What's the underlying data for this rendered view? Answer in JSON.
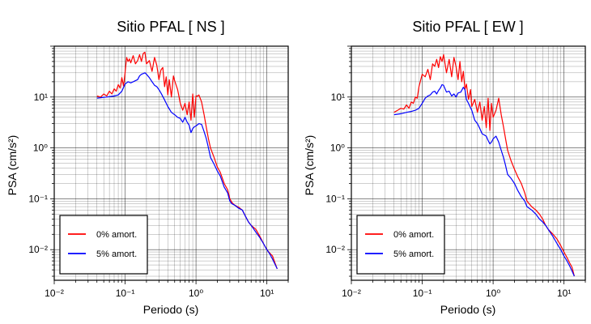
{
  "colors": {
    "series_0": "#ff0000",
    "series_5": "#0000ff",
    "axis": "#000000",
    "grid": "#000000"
  },
  "chart_data": [
    {
      "type": "line",
      "title": "Sitio PFAL [ NS ]",
      "xlabel": "Periodo (s)",
      "ylabel": "PSA (cm/s²)",
      "xscale": "log",
      "yscale": "log",
      "xlim": [
        0.01,
        20
      ],
      "ylim": [
        0.0025,
        100
      ],
      "grid": true,
      "legend_position": "bottom-left",
      "x_ticks": [
        {
          "value": 0.01,
          "label": "10⁻²"
        },
        {
          "value": 0.1,
          "label": "10⁻¹"
        },
        {
          "value": 1,
          "label": "10⁰"
        },
        {
          "value": 10,
          "label": "10¹"
        }
      ],
      "y_ticks": [
        {
          "value": 0.01,
          "label": "10⁻²"
        },
        {
          "value": 0.1,
          "label": "10⁻¹"
        },
        {
          "value": 1,
          "label": "10⁰"
        },
        {
          "value": 10,
          "label": "10¹"
        }
      ],
      "series": [
        {
          "name": "0% amort.",
          "color": "#ff0000",
          "x": [
            0.04,
            0.045,
            0.05,
            0.055,
            0.06,
            0.065,
            0.07,
            0.075,
            0.08,
            0.085,
            0.09,
            0.095,
            0.1,
            0.105,
            0.11,
            0.115,
            0.12,
            0.13,
            0.14,
            0.15,
            0.16,
            0.17,
            0.18,
            0.19,
            0.2,
            0.22,
            0.24,
            0.26,
            0.28,
            0.3,
            0.32,
            0.34,
            0.36,
            0.38,
            0.4,
            0.42,
            0.45,
            0.48,
            0.5,
            0.55,
            0.6,
            0.65,
            0.7,
            0.75,
            0.8,
            0.85,
            0.9,
            0.95,
            1.0,
            1.05,
            1.1,
            1.2,
            1.3,
            1.4,
            1.5,
            1.6,
            1.8,
            2.0,
            2.2,
            2.5,
            2.8,
            3.0,
            3.2,
            3.5,
            4.0,
            4.5,
            5.0,
            5.5,
            6.0,
            7.0,
            8.0,
            9.0,
            10.0,
            11.0,
            12.0,
            13.0,
            14.0
          ],
          "y": [
            10.5,
            10.0,
            11.5,
            10.5,
            13.0,
            11.5,
            14.5,
            13.0,
            17.5,
            15.0,
            24.0,
            16.5,
            30.0,
            60.0,
            50.0,
            56.0,
            47.0,
            65.0,
            45.0,
            52.0,
            68.0,
            50.0,
            72.0,
            76.0,
            45.0,
            52.0,
            32.0,
            60.0,
            42.0,
            22.0,
            34.0,
            38.0,
            16.0,
            25.0,
            11.0,
            22.0,
            10.0,
            26.0,
            21.0,
            14.0,
            7.5,
            5.5,
            7.5,
            4.5,
            8.0,
            3.5,
            11.5,
            4.0,
            10.5,
            10.5,
            11.0,
            8.0,
            4.5,
            2.5,
            1.5,
            1.0,
            0.65,
            0.42,
            0.33,
            0.2,
            0.15,
            0.1,
            0.085,
            0.075,
            0.068,
            0.06,
            0.045,
            0.035,
            0.03,
            0.025,
            0.018,
            0.013,
            0.01,
            0.0085,
            0.0075,
            0.0055,
            0.0042
          ]
        },
        {
          "name": "5% amort.",
          "color": "#0000ff",
          "x": [
            0.04,
            0.045,
            0.05,
            0.055,
            0.06,
            0.07,
            0.08,
            0.09,
            0.1,
            0.11,
            0.12,
            0.13,
            0.14,
            0.15,
            0.16,
            0.17,
            0.18,
            0.19,
            0.2,
            0.22,
            0.24,
            0.26,
            0.28,
            0.3,
            0.32,
            0.35,
            0.4,
            0.45,
            0.5,
            0.55,
            0.6,
            0.65,
            0.7,
            0.75,
            0.8,
            0.85,
            0.9,
            0.95,
            1.0,
            1.1,
            1.2,
            1.3,
            1.4,
            1.5,
            1.6,
            1.8,
            2.0,
            2.2,
            2.5,
            2.8,
            3.0,
            3.2,
            3.5,
            4.0,
            4.5,
            5.0,
            5.5,
            6.0,
            7.0,
            8.0,
            9.0,
            10.0,
            11.0,
            12.0,
            13.0,
            14.0
          ],
          "y": [
            9.5,
            9.7,
            9.9,
            10.0,
            10.2,
            10.5,
            11.0,
            13.0,
            18.0,
            20.0,
            19.0,
            20.0,
            21.0,
            22.0,
            26.0,
            28.0,
            29.0,
            30.0,
            28.0,
            24.0,
            20.0,
            17.0,
            16.0,
            14.0,
            12.0,
            9.5,
            6.5,
            5.0,
            4.5,
            4.0,
            3.8,
            3.2,
            4.0,
            3.2,
            2.8,
            2.0,
            2.4,
            2.6,
            2.7,
            3.0,
            2.9,
            2.1,
            1.5,
            1.0,
            0.65,
            0.48,
            0.35,
            0.28,
            0.17,
            0.13,
            0.09,
            0.08,
            0.075,
            0.065,
            0.06,
            0.045,
            0.035,
            0.03,
            0.022,
            0.017,
            0.013,
            0.01,
            0.0082,
            0.0065,
            0.0052,
            0.0042
          ]
        }
      ]
    },
    {
      "type": "line",
      "title": "Sitio PFAL [ EW ]",
      "xlabel": "Periodo (s)",
      "ylabel": "PSA (cm/s²)",
      "xscale": "log",
      "yscale": "log",
      "xlim": [
        0.01,
        20
      ],
      "ylim": [
        0.0025,
        100
      ],
      "grid": true,
      "legend_position": "bottom-left",
      "x_ticks": [
        {
          "value": 0.01,
          "label": "10⁻²"
        },
        {
          "value": 0.1,
          "label": "10⁻¹"
        },
        {
          "value": 1,
          "label": "10⁰"
        },
        {
          "value": 10,
          "label": "10¹"
        }
      ],
      "y_ticks": [
        {
          "value": 0.01,
          "label": "10⁻²"
        },
        {
          "value": 0.1,
          "label": "10⁻¹"
        },
        {
          "value": 1,
          "label": "10⁰"
        },
        {
          "value": 10,
          "label": "10¹"
        }
      ],
      "series": [
        {
          "name": "0% amort.",
          "color": "#ff0000",
          "x": [
            0.04,
            0.045,
            0.05,
            0.055,
            0.06,
            0.065,
            0.07,
            0.075,
            0.08,
            0.085,
            0.09,
            0.1,
            0.11,
            0.12,
            0.13,
            0.14,
            0.15,
            0.16,
            0.17,
            0.18,
            0.19,
            0.2,
            0.22,
            0.24,
            0.26,
            0.28,
            0.3,
            0.32,
            0.34,
            0.36,
            0.38,
            0.4,
            0.42,
            0.45,
            0.48,
            0.5,
            0.55,
            0.6,
            0.65,
            0.7,
            0.75,
            0.8,
            0.85,
            0.9,
            0.95,
            1.0,
            1.1,
            1.2,
            1.3,
            1.4,
            1.5,
            1.6,
            1.8,
            2.0,
            2.2,
            2.5,
            2.8,
            3.0,
            3.5,
            4.0,
            4.5,
            5.0,
            5.5,
            6.0,
            7.0,
            8.0,
            9.0,
            10.0,
            11.0,
            12.0,
            13.0,
            14.0
          ],
          "y": [
            5.0,
            5.5,
            6.0,
            5.8,
            7.0,
            6.0,
            8.0,
            7.5,
            10.0,
            9.5,
            16.0,
            28.0,
            25.0,
            35.0,
            22.0,
            45.0,
            40.0,
            55.0,
            38.0,
            62.0,
            50.0,
            68.0,
            30.0,
            55.0,
            25.0,
            60.0,
            40.0,
            22.0,
            50.0,
            20.0,
            32.0,
            14.0,
            18.0,
            9.0,
            14.0,
            6.5,
            9.0,
            5.0,
            8.0,
            3.5,
            6.5,
            2.5,
            9.5,
            2.2,
            7.5,
            4.0,
            5.5,
            9.5,
            4.5,
            2.6,
            1.5,
            0.9,
            0.55,
            0.38,
            0.28,
            0.2,
            0.13,
            0.09,
            0.07,
            0.06,
            0.05,
            0.04,
            0.03,
            0.025,
            0.02,
            0.016,
            0.012,
            0.009,
            0.007,
            0.0055,
            0.0045,
            0.003
          ]
        },
        {
          "name": "5% amort.",
          "color": "#0000ff",
          "x": [
            0.04,
            0.05,
            0.06,
            0.07,
            0.08,
            0.09,
            0.1,
            0.11,
            0.12,
            0.13,
            0.14,
            0.15,
            0.16,
            0.17,
            0.18,
            0.19,
            0.2,
            0.22,
            0.24,
            0.26,
            0.28,
            0.3,
            0.32,
            0.35,
            0.38,
            0.4,
            0.42,
            0.45,
            0.5,
            0.55,
            0.6,
            0.65,
            0.7,
            0.75,
            0.8,
            0.85,
            0.9,
            0.95,
            1.0,
            1.1,
            1.2,
            1.3,
            1.4,
            1.5,
            1.6,
            1.8,
            2.0,
            2.2,
            2.5,
            2.8,
            3.0,
            3.5,
            4.0,
            4.5,
            5.0,
            5.5,
            6.0,
            7.0,
            8.0,
            9.0,
            10.0,
            11.0,
            12.0,
            13.0,
            14.0
          ],
          "y": [
            4.5,
            4.7,
            5.0,
            5.2,
            5.5,
            6.0,
            7.5,
            9.5,
            10.5,
            11.0,
            12.5,
            13.0,
            11.5,
            13.5,
            15.0,
            17.5,
            17.0,
            12.5,
            13.0,
            10.5,
            11.5,
            10.0,
            12.0,
            12.5,
            15.5,
            14.0,
            9.0,
            7.5,
            5.5,
            3.5,
            3.0,
            2.4,
            1.9,
            1.8,
            1.7,
            1.4,
            1.2,
            1.3,
            1.5,
            1.7,
            1.3,
            0.9,
            0.65,
            0.45,
            0.3,
            0.25,
            0.2,
            0.15,
            0.11,
            0.09,
            0.07,
            0.06,
            0.05,
            0.04,
            0.035,
            0.03,
            0.025,
            0.018,
            0.013,
            0.01,
            0.0075,
            0.006,
            0.0048,
            0.0038,
            0.003
          ]
        }
      ]
    }
  ]
}
